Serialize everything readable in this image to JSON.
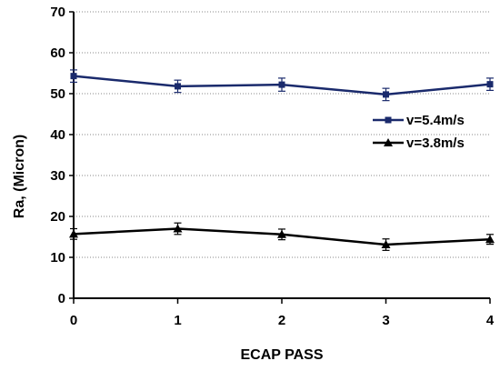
{
  "chart_data": {
    "type": "line",
    "title": "",
    "xlabel": "ECAP PASS",
    "ylabel": "Ra, (Micron)",
    "x": [
      0,
      1,
      2,
      3,
      4
    ],
    "xlim": [
      0,
      4
    ],
    "ylim": [
      0,
      70
    ],
    "x_ticks": [
      "0",
      "1",
      "2",
      "3",
      "4"
    ],
    "y_ticks": [
      "0",
      "10",
      "20",
      "30",
      "40",
      "50",
      "60",
      "70"
    ],
    "grid": "horizontal dotted",
    "legend_position": "right",
    "series": [
      {
        "name": "v=5.4m/s",
        "marker": "square",
        "color": "#1a2a6c",
        "values": [
          54.3,
          51.8,
          52.2,
          49.8,
          52.3
        ],
        "error": [
          1.5,
          1.5,
          1.6,
          1.5,
          1.5
        ]
      },
      {
        "name": "v=3.8m/s",
        "marker": "triangle",
        "color": "#000000",
        "values": [
          15.7,
          17.0,
          15.6,
          13.1,
          14.4
        ],
        "error": [
          1.3,
          1.4,
          1.3,
          1.4,
          1.2
        ]
      }
    ]
  }
}
